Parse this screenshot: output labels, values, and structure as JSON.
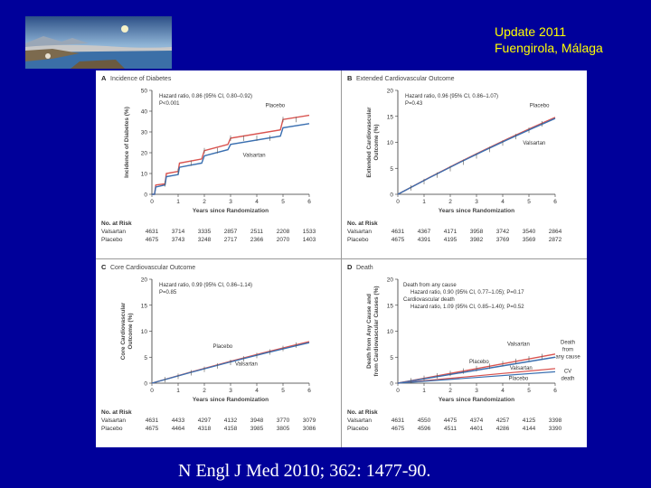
{
  "header": {
    "line1": "Update 2011",
    "line2": "Fuengirola, Málaga"
  },
  "citation": "N Engl J Med 2010; 362: 1477-90.",
  "figure": {
    "panels": [
      {
        "letter": "A",
        "title": "Incidence of Diabetes",
        "ylabel": "Incidence of Diabetes (%)",
        "yticks": [
          "0",
          "10",
          "20",
          "30",
          "40",
          "50"
        ],
        "xticks": [
          "0",
          "1",
          "2",
          "3",
          "4",
          "5",
          "6"
        ],
        "xlabel": "Years since Randomization",
        "hr": [
          "Hazard ratio, 0.86 (95% CI, 0.80–0.92)",
          "P<0.001"
        ],
        "labels": [
          "Placebo",
          "Valsartan"
        ],
        "risk_header": "No. at Risk",
        "risk": [
          {
            "name": "Valsartan",
            "values": [
              "4631",
              "3714",
              "3335",
              "2857",
              "2511",
              "2208",
              "1533"
            ]
          },
          {
            "name": "Placebo",
            "values": [
              "4675",
              "3743",
              "3248",
              "2717",
              "2366",
              "2070",
              "1403"
            ]
          }
        ]
      },
      {
        "letter": "B",
        "title": "Extended Cardiovascular Outcome",
        "ylabel": "Extended Cardiovascular Outcome (%)",
        "yticks": [
          "0",
          "5",
          "10",
          "15",
          "20"
        ],
        "xticks": [
          "0",
          "1",
          "2",
          "3",
          "4",
          "5",
          "6"
        ],
        "xlabel": "Years since Randomization",
        "hr": [
          "Hazard ratio, 0.96 (95% CI, 0.86–1.07)",
          "P=0.43"
        ],
        "labels": [
          "Placebo",
          "Valsartan"
        ],
        "risk_header": "No. at Risk",
        "risk": [
          {
            "name": "Valsartan",
            "values": [
              "4631",
              "4367",
              "4171",
              "3958",
              "3742",
              "3540",
              "2864"
            ]
          },
          {
            "name": "Placebo",
            "values": [
              "4675",
              "4391",
              "4195",
              "3982",
              "3769",
              "3569",
              "2872"
            ]
          }
        ]
      },
      {
        "letter": "C",
        "title": "Core Cardiovascular Outcome",
        "ylabel": "Core Cardiovascular Outcome (%)",
        "yticks": [
          "0",
          "5",
          "10",
          "15",
          "20"
        ],
        "xticks": [
          "0",
          "1",
          "2",
          "3",
          "4",
          "5",
          "6"
        ],
        "xlabel": "Years since Randomization",
        "hr": [
          "Hazard ratio, 0.99 (95% CI, 0.86–1.14)",
          "P=0.85"
        ],
        "labels": [
          "Placebo",
          "Valsartan"
        ],
        "risk_header": "No. at Risk",
        "risk": [
          {
            "name": "Valsartan",
            "values": [
              "4631",
              "4433",
              "4297",
              "4132",
              "3948",
              "3770",
              "3079"
            ]
          },
          {
            "name": "Placebo",
            "values": [
              "4675",
              "4464",
              "4318",
              "4158",
              "3985",
              "3805",
              "3086"
            ]
          }
        ]
      },
      {
        "letter": "D",
        "title": "Death",
        "ylabel": "Death from Any Cause and from Cardiovascular Causes (%)",
        "yticks": [
          "0",
          "5",
          "10",
          "15",
          "20"
        ],
        "xticks": [
          "0",
          "1",
          "2",
          "3",
          "4",
          "5",
          "6"
        ],
        "xlabel": "Years since Randomization",
        "hr": [
          "Death from any cause",
          "Hazard ratio, 0.90 (95% CI, 0.77–1.05); P=0.17",
          "Cardiovascular death",
          "Hazard ratio, 1.09 (95% CI, 0.85–1.40); P=0.52"
        ],
        "labels": [
          "Valsartan",
          "Placebo",
          "Valsartan",
          "Placebo"
        ],
        "side_labels": [
          "Death from any cause",
          "CV death"
        ],
        "risk_header": "No. at Risk",
        "risk": [
          {
            "name": "Valsartan",
            "values": [
              "4631",
              "4550",
              "4475",
              "4374",
              "4257",
              "4125",
              "3398"
            ]
          },
          {
            "name": "Placebo",
            "values": [
              "4675",
              "4596",
              "4511",
              "4401",
              "4286",
              "4144",
              "3390"
            ]
          }
        ]
      }
    ]
  },
  "colors": {
    "background": "#00009a",
    "header": "#ffff00",
    "placebo": "#d9534f",
    "valsartan": "#3a6fb0"
  }
}
